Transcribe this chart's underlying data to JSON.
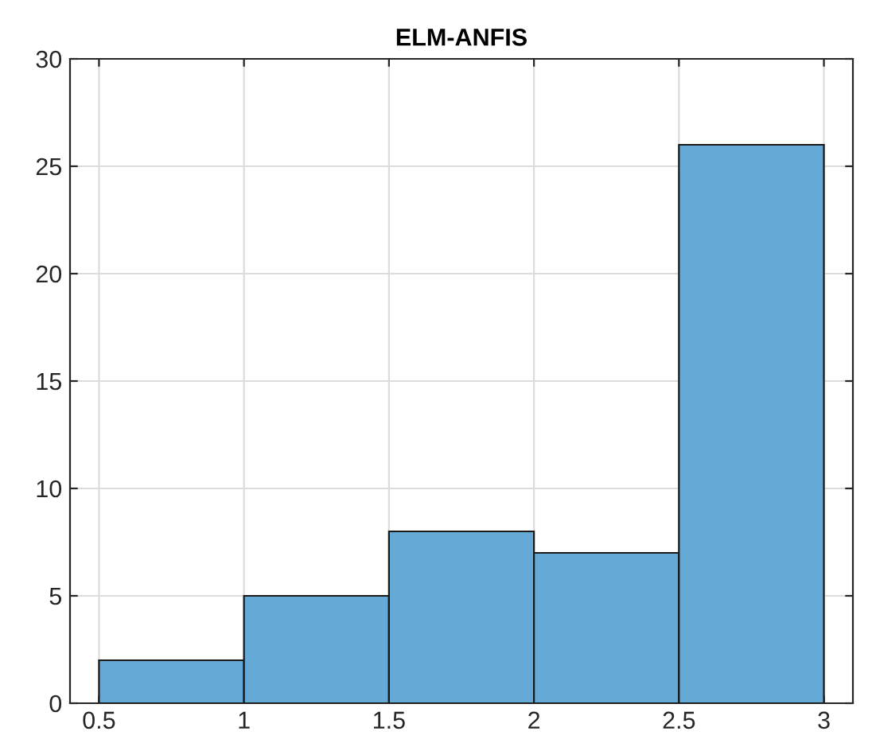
{
  "chart_data": {
    "type": "histogram",
    "title": "ELM-ANFIS",
    "bins": [
      0.5,
      1,
      1.5,
      2,
      2.5,
      3
    ],
    "values": [
      2,
      5,
      8,
      7,
      26
    ],
    "color": "#65a9d7",
    "xlim": [
      0.4,
      3.1
    ],
    "xticks": [
      0.5,
      1,
      1.5,
      2,
      2.5,
      3
    ],
    "ylim": [
      0,
      30
    ],
    "yticks": [
      0,
      5,
      10,
      15,
      20,
      25,
      30
    ],
    "grid": true
  }
}
